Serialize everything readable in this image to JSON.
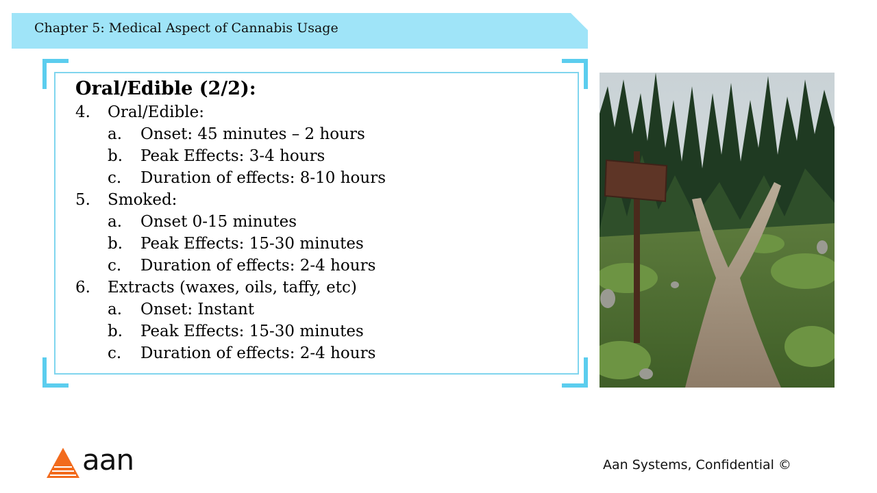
{
  "banner": {
    "title": "Chapter 5: Medical Aspect of Cannabis Usage",
    "color": "#9FE4F8"
  },
  "frame": {
    "accent": "#5BCDEE",
    "border": "#7FD5EE"
  },
  "content": {
    "heading": "Oral/Edible (2/2):",
    "sections": [
      {
        "number": "4.",
        "label": "Oral/Edible:",
        "items": [
          {
            "letter": "a.",
            "text": "Onset: 45 minutes – 2 hours"
          },
          {
            "letter": "b.",
            "text": "Peak Effects: 3-4 hours"
          },
          {
            "letter": "c.",
            "text": "Duration of effects: 8-10 hours"
          }
        ]
      },
      {
        "number": "5.",
        "label": "Smoked:",
        "items": [
          {
            "letter": "a.",
            "text": "Onset 0-15 minutes"
          },
          {
            "letter": "b.",
            "text": "Peak Effects: 15-30 minutes"
          },
          {
            "letter": "c.",
            "text": "Duration of effects: 2-4 hours"
          }
        ]
      },
      {
        "number": "6.",
        "label": "Extracts (waxes, oils, taffy, etc)",
        "items": [
          {
            "letter": "a.",
            "text": "Onset: Instant"
          },
          {
            "letter": "b.",
            "text": "Peak Effects: 15-30 minutes"
          },
          {
            "letter": "c.",
            "text": "Duration of effects: 2-4 hours"
          }
        ]
      }
    ]
  },
  "photo": {
    "subject": "forest trail fork with wooden signpost"
  },
  "logo": {
    "text": "aan",
    "color": "#F26B1D"
  },
  "footer": {
    "text": "Aan Systems, Confidential ©"
  }
}
